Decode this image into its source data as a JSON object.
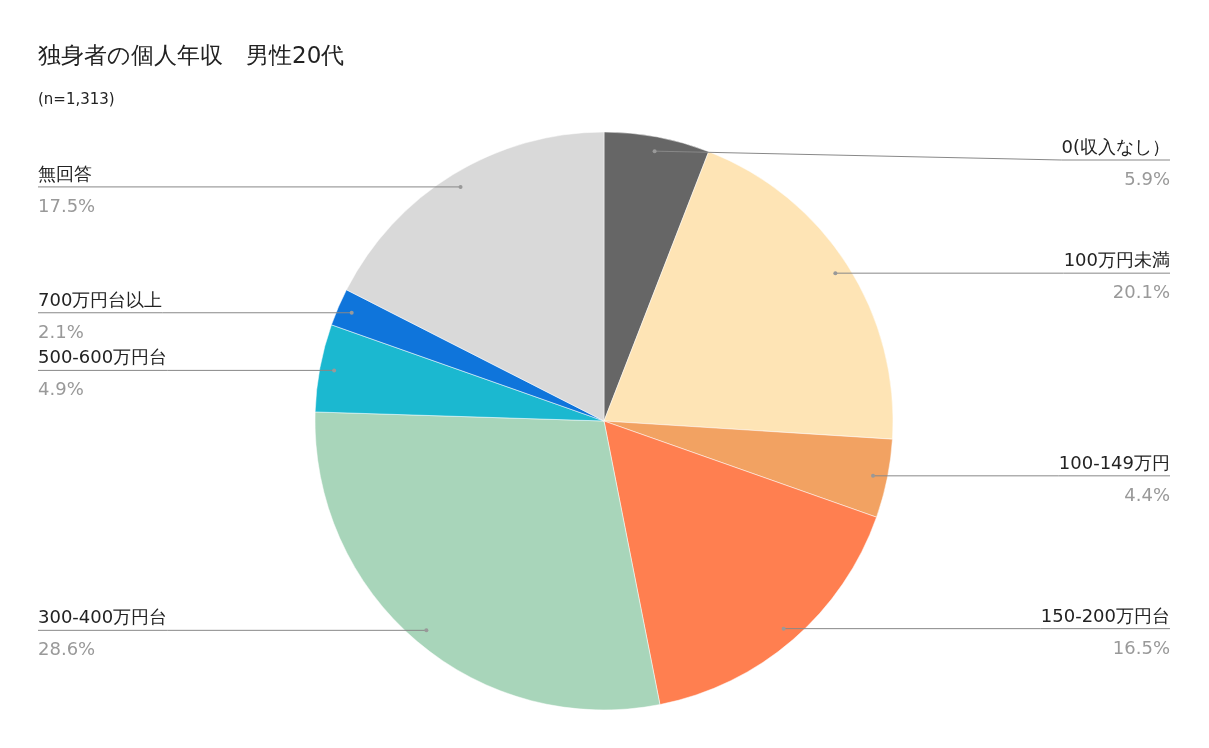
{
  "chart_data": {
    "type": "pie",
    "title": "独身者の個人年収　男性20代",
    "subtitle": "(n=1,313)",
    "categories": [
      "0(収入なし）",
      "100万円未満",
      "100-149万円",
      "150-200万円台",
      "300-400万円台",
      "500-600万円台",
      "700万円台以上",
      "無回答"
    ],
    "values": [
      5.9,
      20.1,
      4.4,
      16.5,
      28.6,
      4.9,
      2.1,
      17.5
    ],
    "colors": [
      "#666666",
      "#fee4b5",
      "#f2a262",
      "#ff7f50",
      "#a8d5ba",
      "#1bb8d0",
      "#0f75db",
      "#d9d9d9"
    ],
    "value_labels": [
      "5.9%",
      "20.1%",
      "4.4%",
      "16.5%",
      "28.6%",
      "4.9%",
      "2.1%",
      "17.5%"
    ]
  }
}
